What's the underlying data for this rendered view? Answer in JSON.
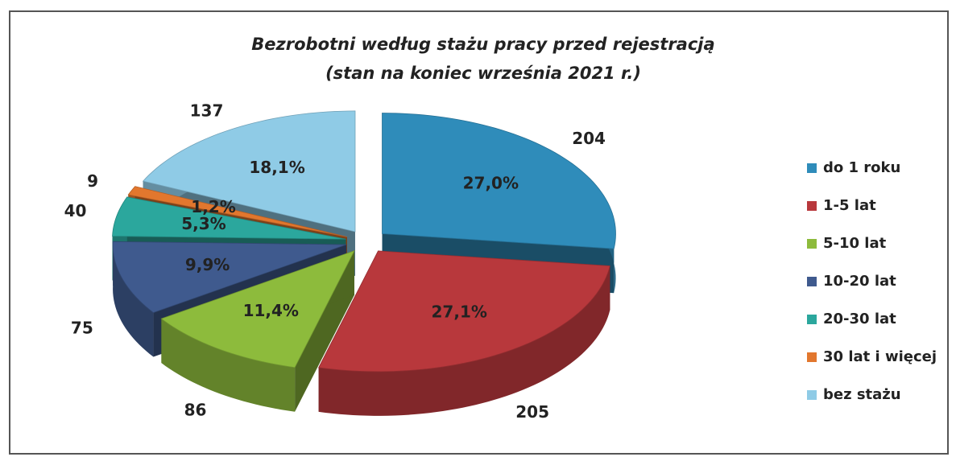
{
  "chart_data": {
    "type": "pie3d",
    "title": "Bezrobotni według stażu pracy przed rejestracją",
    "subtitle": "(stan na koniec września 2021 r.)",
    "categories": [
      "do 1 roku",
      "1-5 lat",
      "5-10 lat",
      "10-20 lat",
      "20-30 lat",
      "30 lat i więcej",
      "bez stażu"
    ],
    "values": [
      204,
      205,
      86,
      75,
      40,
      9,
      137
    ],
    "percent_labels": [
      "27,0%",
      "27,1%",
      "11,4%",
      "9,9%",
      "5,3%",
      "1,2%",
      "18,1%"
    ],
    "colors": [
      "#2f8cba",
      "#b8383c",
      "#8dbb3c",
      "#3f5a8e",
      "#2ba79d",
      "#e2772e",
      "#8fcbe6"
    ],
    "legend": "right"
  }
}
